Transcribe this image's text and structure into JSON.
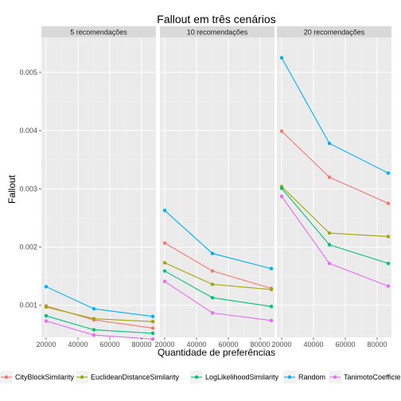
{
  "chart_data": {
    "type": "line",
    "title": "Fallout em três cenários",
    "xlabel": "Quantidade de preferências",
    "ylabel": "Fallout",
    "xlim": [
      17000,
      89000
    ],
    "ylim": [
      0.00045,
      0.0056
    ],
    "x_ticks": [
      20000,
      40000,
      60000,
      80000
    ],
    "x_tick_labels": [
      "20000",
      "40000",
      "60000",
      "80000"
    ],
    "y_ticks": [
      0.001,
      0.002,
      0.003,
      0.004,
      0.005
    ],
    "y_tick_labels": [
      "0.001",
      "0.002",
      "0.003",
      "0.004",
      "0.005"
    ],
    "grid": true,
    "legend_position": "bottom",
    "x": [
      20000,
      50000,
      87000
    ],
    "series_meta": [
      {
        "name": "CityBlockSimilarity",
        "color": "#F8766D"
      },
      {
        "name": "EuclideanDistanceSimilarity",
        "color": "#A3A500"
      },
      {
        "name": "LogLikelihoodSimilarity",
        "color": "#00BF7D"
      },
      {
        "name": "Random",
        "color": "#00B0F6"
      },
      {
        "name": "TanimotoCoefficientSimilarity",
        "color": "#E76BF3"
      }
    ],
    "facets": [
      {
        "label": "5 recomendações",
        "series": [
          {
            "name": "CityBlockSimilarity",
            "values": [
              0.00099,
              0.00075,
              0.00061
            ]
          },
          {
            "name": "EuclideanDistanceSimilarity",
            "values": [
              0.00097,
              0.00077,
              0.00072
            ]
          },
          {
            "name": "LogLikelihoodSimilarity",
            "values": [
              0.00082,
              0.00058,
              0.00052
            ]
          },
          {
            "name": "Random",
            "values": [
              0.00132,
              0.00094,
              0.00081
            ]
          },
          {
            "name": "TanimotoCoefficientSimilarity",
            "values": [
              0.00073,
              0.00049,
              0.00042
            ]
          }
        ]
      },
      {
        "label": "10 recomendações",
        "series": [
          {
            "name": "CityBlockSimilarity",
            "values": [
              0.00207,
              0.00159,
              0.00129
            ]
          },
          {
            "name": "EuclideanDistanceSimilarity",
            "values": [
              0.00173,
              0.00136,
              0.00127
            ]
          },
          {
            "name": "LogLikelihoodSimilarity",
            "values": [
              0.00159,
              0.00113,
              0.00098
            ]
          },
          {
            "name": "Random",
            "values": [
              0.00263,
              0.00189,
              0.00163
            ]
          },
          {
            "name": "TanimotoCoefficientSimilarity",
            "values": [
              0.00141,
              0.00087,
              0.00074
            ]
          }
        ]
      },
      {
        "label": "20 recomendações",
        "series": [
          {
            "name": "CityBlockSimilarity",
            "values": [
              0.00399,
              0.0032,
              0.00275
            ]
          },
          {
            "name": "EuclideanDistanceSimilarity",
            "values": [
              0.00304,
              0.00224,
              0.00218
            ]
          },
          {
            "name": "LogLikelihoodSimilarity",
            "values": [
              0.00301,
              0.00204,
              0.00172
            ]
          },
          {
            "name": "Random",
            "values": [
              0.00525,
              0.00378,
              0.00327
            ]
          },
          {
            "name": "TanimotoCoefficientSimilarity",
            "values": [
              0.00287,
              0.00172,
              0.00133
            ]
          }
        ]
      }
    ]
  }
}
